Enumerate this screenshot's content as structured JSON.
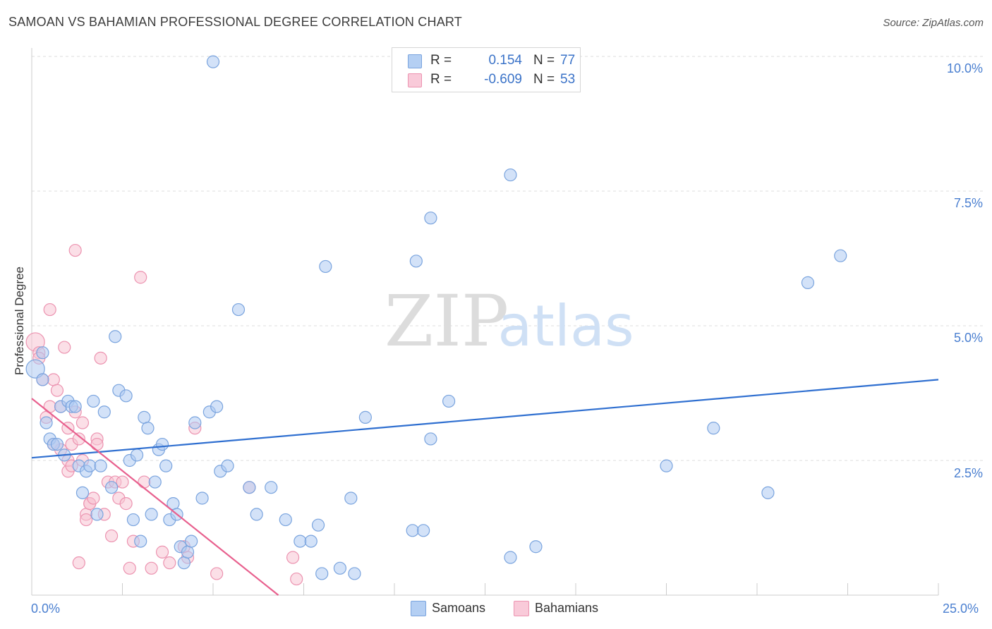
{
  "header": {
    "title": "SAMOAN VS BAHAMIAN PROFESSIONAL DEGREE CORRELATION CHART",
    "source": "Source: ZipAtlas.com"
  },
  "watermark": {
    "zip": "ZIP",
    "atlas": "atlas"
  },
  "colors": {
    "samoans_fill": "#aecbf2",
    "samoans_stroke": "#7aa4de",
    "samoans_line": "#2f6fd0",
    "bahamians_fill": "#f8c4d4",
    "bahamians_stroke": "#ec93b0",
    "bahamians_line": "#e8608e",
    "grid": "#dddddd",
    "tick_text": "#4a7fd0"
  },
  "legend": {
    "r_label": "R =",
    "n_label": "N =",
    "items": [
      {
        "name": "Samoans",
        "r": "0.154",
        "n": "77"
      },
      {
        "name": "Bahamians",
        "r": "-0.609",
        "n": "53"
      }
    ]
  },
  "chart_data": {
    "type": "scatter",
    "title": "SAMOAN VS BAHAMIAN PROFESSIONAL DEGREE CORRELATION CHART",
    "xlabel": "",
    "ylabel": "Professional Degree",
    "xlim": [
      0,
      25
    ],
    "ylim": [
      0,
      10.5
    ],
    "x_tick_labels": [
      {
        "value": 0,
        "label": "0.0%"
      },
      {
        "value": 25,
        "label": "25.0%"
      }
    ],
    "y_tick_labels": [
      {
        "value": 2.5,
        "label": "2.5%"
      },
      {
        "value": 5.0,
        "label": "5.0%"
      },
      {
        "value": 7.5,
        "label": "7.5%"
      },
      {
        "value": 10.0,
        "label": "10.0%"
      }
    ],
    "grid": true,
    "legend_position": "top-center",
    "series": [
      {
        "name": "Samoans",
        "trend": {
          "x0": 0,
          "y0": 2.55,
          "x1": 25,
          "y1": 4.0
        },
        "points": [
          [
            0.1,
            4.2
          ],
          [
            0.3,
            4.5
          ],
          [
            0.3,
            4.0
          ],
          [
            0.4,
            3.2
          ],
          [
            0.5,
            2.9
          ],
          [
            0.6,
            2.8
          ],
          [
            0.7,
            2.8
          ],
          [
            0.8,
            3.5
          ],
          [
            0.9,
            2.6
          ],
          [
            1.0,
            3.6
          ],
          [
            1.1,
            3.5
          ],
          [
            1.2,
            3.5
          ],
          [
            1.3,
            2.4
          ],
          [
            1.4,
            1.9
          ],
          [
            1.5,
            2.3
          ],
          [
            1.6,
            2.4
          ],
          [
            1.7,
            3.6
          ],
          [
            1.8,
            1.5
          ],
          [
            1.9,
            2.4
          ],
          [
            2.0,
            3.4
          ],
          [
            2.2,
            2.0
          ],
          [
            2.3,
            4.8
          ],
          [
            2.4,
            3.8
          ],
          [
            2.6,
            3.7
          ],
          [
            2.7,
            2.5
          ],
          [
            2.8,
            1.4
          ],
          [
            2.9,
            2.6
          ],
          [
            3.0,
            1.0
          ],
          [
            3.1,
            3.3
          ],
          [
            3.2,
            3.1
          ],
          [
            3.3,
            1.5
          ],
          [
            3.4,
            2.1
          ],
          [
            3.5,
            2.7
          ],
          [
            3.6,
            2.8
          ],
          [
            3.7,
            2.4
          ],
          [
            3.8,
            1.4
          ],
          [
            3.9,
            1.7
          ],
          [
            4.0,
            1.5
          ],
          [
            4.1,
            0.9
          ],
          [
            4.2,
            0.6
          ],
          [
            4.3,
            0.8
          ],
          [
            4.4,
            1.0
          ],
          [
            4.5,
            3.2
          ],
          [
            4.7,
            1.8
          ],
          [
            4.9,
            3.4
          ],
          [
            5.0,
            9.9
          ],
          [
            5.1,
            3.5
          ],
          [
            5.2,
            2.3
          ],
          [
            5.4,
            2.4
          ],
          [
            5.7,
            5.3
          ],
          [
            6.0,
            2.0
          ],
          [
            6.2,
            1.5
          ],
          [
            6.6,
            2.0
          ],
          [
            7.0,
            1.4
          ],
          [
            7.4,
            1.0
          ],
          [
            7.7,
            1.0
          ],
          [
            7.9,
            1.3
          ],
          [
            8.0,
            0.4
          ],
          [
            8.1,
            6.1
          ],
          [
            8.5,
            0.5
          ],
          [
            8.8,
            1.8
          ],
          [
            8.9,
            0.4
          ],
          [
            9.2,
            3.3
          ],
          [
            10.5,
            1.2
          ],
          [
            10.6,
            6.2
          ],
          [
            10.8,
            1.2
          ],
          [
            11.0,
            7.0
          ],
          [
            11.0,
            2.9
          ],
          [
            11.5,
            3.6
          ],
          [
            13.2,
            7.8
          ],
          [
            13.2,
            0.7
          ],
          [
            13.9,
            0.9
          ],
          [
            17.5,
            2.4
          ],
          [
            18.8,
            3.1
          ],
          [
            20.3,
            1.9
          ],
          [
            21.4,
            5.8
          ],
          [
            22.3,
            6.3
          ]
        ]
      },
      {
        "name": "Bahamians",
        "trend": {
          "x0": 0,
          "y0": 3.65,
          "x1": 6.8,
          "y1": 0
        },
        "points": [
          [
            0.1,
            4.7
          ],
          [
            0.2,
            4.5
          ],
          [
            0.3,
            4.0
          ],
          [
            0.4,
            3.3
          ],
          [
            0.5,
            3.5
          ],
          [
            0.5,
            5.3
          ],
          [
            0.6,
            4.0
          ],
          [
            0.7,
            3.8
          ],
          [
            0.8,
            2.7
          ],
          [
            0.8,
            3.5
          ],
          [
            0.9,
            4.6
          ],
          [
            1.0,
            2.3
          ],
          [
            1.0,
            2.5
          ],
          [
            1.1,
            2.8
          ],
          [
            1.1,
            2.4
          ],
          [
            1.2,
            3.4
          ],
          [
            1.2,
            6.4
          ],
          [
            1.3,
            2.9
          ],
          [
            1.3,
            0.6
          ],
          [
            1.4,
            2.5
          ],
          [
            1.4,
            3.2
          ],
          [
            1.5,
            1.5
          ],
          [
            1.6,
            1.7
          ],
          [
            1.6,
            1.7
          ],
          [
            1.7,
            1.8
          ],
          [
            1.8,
            2.9
          ],
          [
            1.8,
            2.8
          ],
          [
            1.9,
            4.4
          ],
          [
            2.0,
            1.5
          ],
          [
            2.1,
            2.1
          ],
          [
            2.2,
            1.1
          ],
          [
            2.3,
            2.1
          ],
          [
            2.4,
            1.8
          ],
          [
            2.5,
            2.1
          ],
          [
            2.6,
            1.7
          ],
          [
            2.7,
            0.5
          ],
          [
            2.8,
            1.0
          ],
          [
            3.0,
            5.9
          ],
          [
            3.1,
            2.1
          ],
          [
            3.3,
            0.5
          ],
          [
            3.6,
            0.8
          ],
          [
            3.8,
            0.6
          ],
          [
            4.2,
            0.9
          ],
          [
            4.3,
            0.7
          ],
          [
            4.5,
            3.1
          ],
          [
            5.1,
            0.4
          ],
          [
            6.0,
            2.0
          ],
          [
            7.2,
            0.7
          ],
          [
            7.3,
            0.3
          ],
          [
            0.2,
            4.4
          ],
          [
            0.6,
            2.8
          ],
          [
            1.0,
            3.1
          ],
          [
            1.5,
            1.4
          ]
        ]
      }
    ]
  }
}
